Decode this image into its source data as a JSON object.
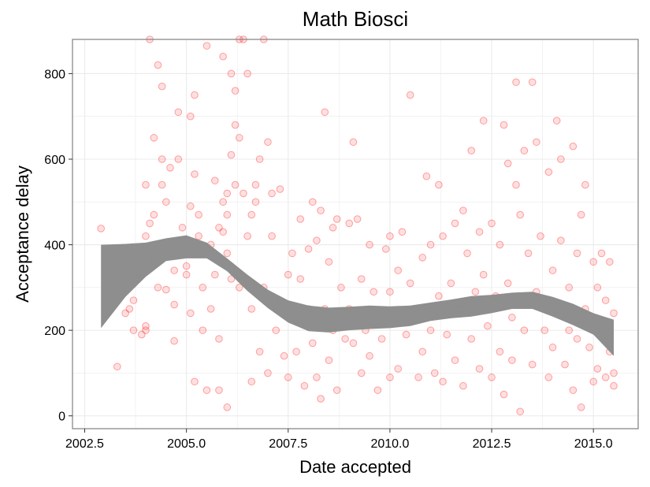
{
  "chart_data": {
    "type": "scatter",
    "title": "Math Biosci",
    "xlabel": "Date accepted",
    "ylabel": "Acceptance delay",
    "xlim": [
      2002.2,
      2016.1
    ],
    "ylim": [
      -30,
      880
    ],
    "xticks": [
      2002.5,
      2005.0,
      2007.5,
      2010.0,
      2012.5,
      2015.0
    ],
    "xtick_labels": [
      "2002.5",
      "2005.0",
      "2007.5",
      "2010.0",
      "2012.5",
      "2015.0"
    ],
    "yticks": [
      0,
      200,
      400,
      600,
      800
    ],
    "ytick_labels": [
      "0",
      "200",
      "400",
      "600",
      "800"
    ],
    "grid": true,
    "legend": "none",
    "colors": {
      "points": "#ff0000",
      "band": "#8c8c8c",
      "frame": "#7f7f7f",
      "grid": "#ebebeb"
    },
    "smooth_band": {
      "x": [
        2002.9,
        2003.5,
        2004.0,
        2004.5,
        2005.0,
        2005.5,
        2006.0,
        2006.5,
        2007.0,
        2007.5,
        2008.0,
        2008.5,
        2009.0,
        2009.5,
        2010.0,
        2010.5,
        2011.0,
        2011.5,
        2012.0,
        2012.5,
        2013.0,
        2013.5,
        2014.0,
        2014.5,
        2015.0,
        2015.5
      ],
      "upper": [
        400,
        402,
        405,
        415,
        422,
        405,
        368,
        330,
        295,
        270,
        258,
        253,
        255,
        258,
        256,
        258,
        265,
        272,
        280,
        283,
        288,
        290,
        278,
        262,
        240,
        225
      ],
      "lower": [
        205,
        278,
        325,
        362,
        368,
        368,
        338,
        292,
        252,
        218,
        198,
        195,
        200,
        203,
        205,
        210,
        222,
        228,
        232,
        240,
        250,
        250,
        232,
        212,
        190,
        140
      ]
    },
    "points": [
      [
        2002.9,
        438
      ],
      [
        2003.3,
        115
      ],
      [
        2003.5,
        240
      ],
      [
        2003.6,
        250
      ],
      [
        2003.7,
        270
      ],
      [
        2003.7,
        200
      ],
      [
        2003.8,
        320
      ],
      [
        2003.9,
        190
      ],
      [
        2004.0,
        200
      ],
      [
        2004.0,
        210
      ],
      [
        2004.0,
        420
      ],
      [
        2004.0,
        540
      ],
      [
        2004.1,
        450
      ],
      [
        2004.1,
        880
      ],
      [
        2004.2,
        650
      ],
      [
        2004.2,
        470
      ],
      [
        2004.2,
        360
      ],
      [
        2004.3,
        820
      ],
      [
        2004.3,
        300
      ],
      [
        2004.4,
        770
      ],
      [
        2004.4,
        540
      ],
      [
        2004.4,
        600
      ],
      [
        2004.5,
        295
      ],
      [
        2004.5,
        500
      ],
      [
        2004.6,
        580
      ],
      [
        2004.6,
        380
      ],
      [
        2004.7,
        260
      ],
      [
        2004.7,
        340
      ],
      [
        2004.7,
        175
      ],
      [
        2004.8,
        710
      ],
      [
        2004.8,
        600
      ],
      [
        2004.9,
        440
      ],
      [
        2005.0,
        330
      ],
      [
        2005.0,
        350
      ],
      [
        2005.1,
        700
      ],
      [
        2005.1,
        490
      ],
      [
        2005.1,
        240
      ],
      [
        2005.2,
        565
      ],
      [
        2005.2,
        80
      ],
      [
        2005.2,
        750
      ],
      [
        2005.3,
        470
      ],
      [
        2005.3,
        420
      ],
      [
        2005.4,
        300
      ],
      [
        2005.4,
        200
      ],
      [
        2005.5,
        865
      ],
      [
        2005.5,
        60
      ],
      [
        2005.6,
        400
      ],
      [
        2005.6,
        250
      ],
      [
        2005.7,
        550
      ],
      [
        2005.7,
        330
      ],
      [
        2005.8,
        440
      ],
      [
        2005.8,
        180
      ],
      [
        2005.8,
        60
      ],
      [
        2005.9,
        840
      ],
      [
        2005.9,
        500
      ],
      [
        2005.9,
        430
      ],
      [
        2006.0,
        520
      ],
      [
        2006.0,
        470
      ],
      [
        2006.0,
        380
      ],
      [
        2006.0,
        20
      ],
      [
        2006.1,
        800
      ],
      [
        2006.1,
        610
      ],
      [
        2006.1,
        320
      ],
      [
        2006.2,
        760
      ],
      [
        2006.2,
        680
      ],
      [
        2006.2,
        540
      ],
      [
        2006.3,
        880
      ],
      [
        2006.3,
        650
      ],
      [
        2006.3,
        300
      ],
      [
        2006.4,
        880
      ],
      [
        2006.4,
        520
      ],
      [
        2006.5,
        800
      ],
      [
        2006.5,
        420
      ],
      [
        2006.6,
        470
      ],
      [
        2006.6,
        250
      ],
      [
        2006.6,
        80
      ],
      [
        2006.7,
        540
      ],
      [
        2006.7,
        500
      ],
      [
        2006.8,
        600
      ],
      [
        2006.8,
        150
      ],
      [
        2006.9,
        880
      ],
      [
        2006.9,
        300
      ],
      [
        2007.0,
        640
      ],
      [
        2007.0,
        100
      ],
      [
        2007.1,
        520
      ],
      [
        2007.1,
        420
      ],
      [
        2007.2,
        200
      ],
      [
        2007.3,
        530
      ],
      [
        2007.3,
        270
      ],
      [
        2007.4,
        140
      ],
      [
        2007.5,
        330
      ],
      [
        2007.5,
        90
      ],
      [
        2007.6,
        380
      ],
      [
        2007.7,
        150
      ],
      [
        2007.8,
        460
      ],
      [
        2007.8,
        320
      ],
      [
        2007.9,
        70
      ],
      [
        2008.0,
        390
      ],
      [
        2008.0,
        250
      ],
      [
        2008.1,
        500
      ],
      [
        2008.1,
        170
      ],
      [
        2008.2,
        410
      ],
      [
        2008.2,
        90
      ],
      [
        2008.3,
        480
      ],
      [
        2008.3,
        40
      ],
      [
        2008.4,
        710
      ],
      [
        2008.4,
        250
      ],
      [
        2008.5,
        360
      ],
      [
        2008.5,
        130
      ],
      [
        2008.6,
        440
      ],
      [
        2008.6,
        200
      ],
      [
        2008.7,
        460
      ],
      [
        2008.7,
        60
      ],
      [
        2008.8,
        300
      ],
      [
        2008.9,
        180
      ],
      [
        2009.0,
        450
      ],
      [
        2009.0,
        250
      ],
      [
        2009.1,
        640
      ],
      [
        2009.1,
        170
      ],
      [
        2009.2,
        460
      ],
      [
        2009.3,
        320
      ],
      [
        2009.3,
        100
      ],
      [
        2009.4,
        200
      ],
      [
        2009.5,
        400
      ],
      [
        2009.5,
        140
      ],
      [
        2009.6,
        290
      ],
      [
        2009.7,
        60
      ],
      [
        2009.8,
        180
      ],
      [
        2009.9,
        390
      ],
      [
        2010.0,
        420
      ],
      [
        2010.0,
        290
      ],
      [
        2010.0,
        90
      ],
      [
        2010.1,
        240
      ],
      [
        2010.2,
        340
      ],
      [
        2010.2,
        110
      ],
      [
        2010.3,
        430
      ],
      [
        2010.4,
        190
      ],
      [
        2010.5,
        750
      ],
      [
        2010.5,
        310
      ],
      [
        2010.6,
        250
      ],
      [
        2010.7,
        90
      ],
      [
        2010.8,
        370
      ],
      [
        2010.8,
        150
      ],
      [
        2010.9,
        560
      ],
      [
        2011.0,
        400
      ],
      [
        2011.0,
        200
      ],
      [
        2011.1,
        100
      ],
      [
        2011.2,
        540
      ],
      [
        2011.2,
        280
      ],
      [
        2011.3,
        420
      ],
      [
        2011.3,
        80
      ],
      [
        2011.4,
        190
      ],
      [
        2011.5,
        310
      ],
      [
        2011.6,
        450
      ],
      [
        2011.6,
        130
      ],
      [
        2011.7,
        250
      ],
      [
        2011.8,
        480
      ],
      [
        2011.8,
        70
      ],
      [
        2011.9,
        380
      ],
      [
        2012.0,
        620
      ],
      [
        2012.0,
        180
      ],
      [
        2012.1,
        290
      ],
      [
        2012.2,
        430
      ],
      [
        2012.2,
        110
      ],
      [
        2012.3,
        690
      ],
      [
        2012.3,
        330
      ],
      [
        2012.4,
        210
      ],
      [
        2012.5,
        450
      ],
      [
        2012.5,
        90
      ],
      [
        2012.6,
        280
      ],
      [
        2012.7,
        400
      ],
      [
        2012.7,
        150
      ],
      [
        2012.8,
        680
      ],
      [
        2012.8,
        50
      ],
      [
        2012.9,
        590
      ],
      [
        2012.9,
        310
      ],
      [
        2013.0,
        230
      ],
      [
        2013.0,
        130
      ],
      [
        2013.1,
        780
      ],
      [
        2013.1,
        540
      ],
      [
        2013.2,
        470
      ],
      [
        2013.2,
        10
      ],
      [
        2013.3,
        620
      ],
      [
        2013.3,
        200
      ],
      [
        2013.4,
        380
      ],
      [
        2013.5,
        780
      ],
      [
        2013.5,
        120
      ],
      [
        2013.6,
        640
      ],
      [
        2013.6,
        290
      ],
      [
        2013.7,
        420
      ],
      [
        2013.8,
        200
      ],
      [
        2013.9,
        570
      ],
      [
        2013.9,
        90
      ],
      [
        2014.0,
        340
      ],
      [
        2014.0,
        160
      ],
      [
        2014.1,
        690
      ],
      [
        2014.1,
        250
      ],
      [
        2014.2,
        600
      ],
      [
        2014.2,
        410
      ],
      [
        2014.3,
        120
      ],
      [
        2014.4,
        300
      ],
      [
        2014.4,
        200
      ],
      [
        2014.5,
        630
      ],
      [
        2014.5,
        60
      ],
      [
        2014.6,
        380
      ],
      [
        2014.6,
        180
      ],
      [
        2014.7,
        470
      ],
      [
        2014.7,
        20
      ],
      [
        2014.8,
        540
      ],
      [
        2014.8,
        250
      ],
      [
        2014.9,
        160
      ],
      [
        2015.0,
        360
      ],
      [
        2015.0,
        80
      ],
      [
        2015.1,
        300
      ],
      [
        2015.1,
        110
      ],
      [
        2015.2,
        380
      ],
      [
        2015.2,
        200
      ],
      [
        2015.3,
        270
      ],
      [
        2015.3,
        90
      ],
      [
        2015.4,
        360
      ],
      [
        2015.4,
        150
      ],
      [
        2015.5,
        240
      ],
      [
        2015.5,
        70
      ],
      [
        2015.5,
        100
      ]
    ]
  }
}
